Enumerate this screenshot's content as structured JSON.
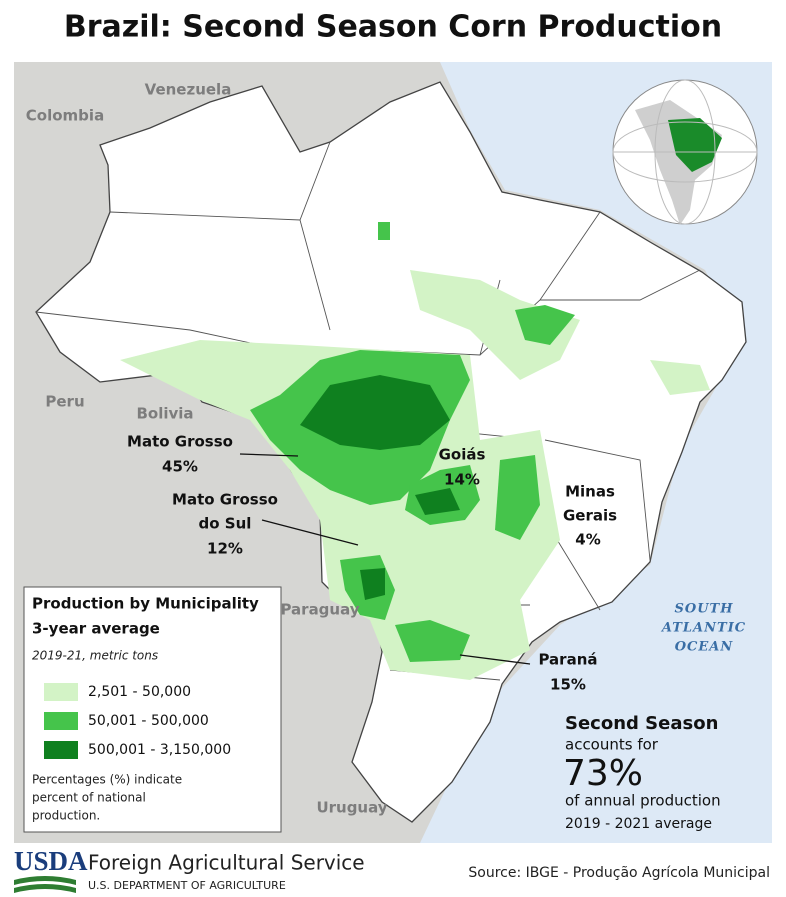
{
  "title": "Brazil: Second Season Corn Production",
  "countries": [
    "Venezuela",
    "Colombia",
    "Peru",
    "Bolivia",
    "Paraguay",
    "Uruguay"
  ],
  "ocean": [
    "SOUTH",
    "ATLANTIC",
    "OCEAN"
  ],
  "states": [
    {
      "name_lines": [
        "Mato Grosso"
      ],
      "share": "45%"
    },
    {
      "name_lines": [
        "Mato Grosso",
        "do Sul"
      ],
      "share": "12%"
    },
    {
      "name_lines": [
        "Goiás"
      ],
      "share": "14%"
    },
    {
      "name_lines": [
        "Minas",
        "Gerais"
      ],
      "share": "4%"
    },
    {
      "name_lines": [
        "Paraná"
      ],
      "share": "15%"
    }
  ],
  "legend": {
    "title_lines": [
      "Production by Municipality",
      "3-year average"
    ],
    "subtitle": "2019-21, metric tons",
    "items": [
      {
        "label": "2,501 - 50,000",
        "color": "#d3f3c6"
      },
      {
        "label": "50,001 - 500,000",
        "color": "#45c44b"
      },
      {
        "label": "500,001 - 3,150,000",
        "color": "#0f801f"
      }
    ],
    "note_lines": [
      "Percentages (%) indicate",
      "percent of national",
      "production."
    ]
  },
  "summary": {
    "heading": "Second Season",
    "line1": "accounts for",
    "share": "73%",
    "line2": "of annual production",
    "period": "2019 - 2021 average"
  },
  "footer": {
    "logo": "USDA",
    "agency": "Foreign Agricultural Service",
    "department": "U.S. DEPARTMENT OF AGRICULTURE",
    "source": "Source: IBGE - Produção Agrícola Municipal"
  }
}
